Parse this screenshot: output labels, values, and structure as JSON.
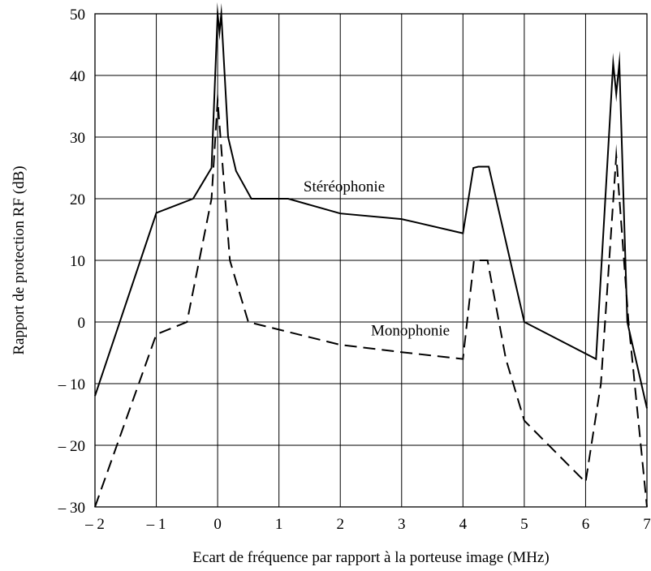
{
  "chart_data": {
    "type": "line",
    "title": "",
    "xlabel": "Ecart de fréquence par rapport à la porteuse image (MHz)",
    "ylabel": "Rapport de protection RF (dB)",
    "xlim": [
      -2,
      7
    ],
    "ylim": [
      -30,
      50
    ],
    "grid": true,
    "legend": "none",
    "x_ticks": [
      -2,
      -1,
      0,
      1,
      2,
      3,
      4,
      5,
      6,
      7
    ],
    "x_tick_labels": [
      "– 2",
      "– 1",
      "0",
      "1",
      "2",
      "3",
      "4",
      "5",
      "6",
      "7"
    ],
    "y_ticks": [
      -30,
      -20,
      -10,
      0,
      10,
      20,
      30,
      40,
      50
    ],
    "y_tick_labels": [
      "– 30",
      "– 20",
      "– 10",
      "0",
      "10",
      "20",
      "30",
      "40",
      "50"
    ],
    "series": [
      {
        "name": "Stéréophonie",
        "style": "solid",
        "color": "#000000",
        "points": [
          [
            -2,
            -12
          ],
          [
            -1,
            17.7
          ],
          [
            -0.4,
            20
          ],
          [
            -0.1,
            25
          ],
          [
            0,
            50
          ],
          [
            0.03,
            47
          ],
          [
            0.06,
            50
          ],
          [
            0.17,
            30
          ],
          [
            0.3,
            24.5
          ],
          [
            0.55,
            20
          ],
          [
            1.15,
            20
          ],
          [
            2,
            17.6
          ],
          [
            3,
            16.7
          ],
          [
            4,
            14.4
          ],
          [
            4.17,
            25
          ],
          [
            4.25,
            25.2
          ],
          [
            4.42,
            25.2
          ],
          [
            5,
            0
          ],
          [
            6.17,
            -6
          ],
          [
            6.45,
            42
          ],
          [
            6.5,
            37
          ],
          [
            6.55,
            42
          ],
          [
            6.68,
            0
          ],
          [
            7,
            -14
          ]
        ]
      },
      {
        "name": "Monophonie",
        "style": "dashed",
        "color": "#000000",
        "points": [
          [
            -2,
            -30
          ],
          [
            -1,
            -2
          ],
          [
            -0.5,
            0
          ],
          [
            -0.1,
            20
          ],
          [
            0,
            36
          ],
          [
            0.2,
            10
          ],
          [
            0.5,
            0
          ],
          [
            2,
            -3.7
          ],
          [
            3,
            -4.9
          ],
          [
            4,
            -6
          ],
          [
            4.18,
            10
          ],
          [
            4.4,
            10
          ],
          [
            4.7,
            -6
          ],
          [
            5,
            -16
          ],
          [
            6,
            -26
          ],
          [
            6.25,
            -10
          ],
          [
            6.5,
            27
          ],
          [
            6.7,
            0
          ],
          [
            7,
            -30
          ]
        ]
      }
    ],
    "annotations": [
      {
        "text": "Stéréophonie",
        "x": 1.4,
        "y": 21.2
      },
      {
        "text": "Monophonie",
        "x": 2.5,
        "y": -2.2
      }
    ]
  }
}
